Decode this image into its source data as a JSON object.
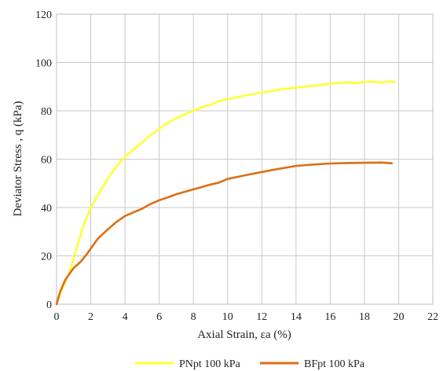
{
  "chart_data": {
    "type": "line",
    "xlabel": "Axial Strain, εa (%)",
    "ylabel": "Deviator Stress , q (kPa)",
    "xlim": [
      0,
      22
    ],
    "ylim": [
      0,
      120
    ],
    "xticks": [
      0,
      2,
      4,
      6,
      8,
      10,
      12,
      14,
      16,
      18,
      20,
      22
    ],
    "yticks": [
      0,
      20,
      40,
      60,
      80,
      100,
      120
    ],
    "grid": true,
    "legend_position": "bottom-center",
    "series": [
      {
        "name": "PNpt 100 kPa",
        "color": "#ffff33",
        "points": [
          [
            0,
            0
          ],
          [
            0.2,
            4
          ],
          [
            0.5,
            9
          ],
          [
            0.8,
            14
          ],
          [
            1.0,
            19
          ],
          [
            1.3,
            26
          ],
          [
            1.6,
            33
          ],
          [
            2.0,
            40
          ],
          [
            2.5,
            46
          ],
          [
            3.0,
            52
          ],
          [
            3.5,
            57
          ],
          [
            4.0,
            61
          ],
          [
            4.5,
            64
          ],
          [
            5.0,
            67
          ],
          [
            5.5,
            70
          ],
          [
            6.0,
            72.5
          ],
          [
            6.5,
            75
          ],
          [
            7.0,
            77
          ],
          [
            7.5,
            78.5
          ],
          [
            8.0,
            80
          ],
          [
            8.5,
            81.5
          ],
          [
            9.0,
            82.5
          ],
          [
            9.5,
            84
          ],
          [
            10.0,
            84.8
          ],
          [
            11.0,
            86.3
          ],
          [
            12.0,
            87.5
          ],
          [
            13.0,
            88.7
          ],
          [
            14.0,
            89.6
          ],
          [
            15.0,
            90.4
          ],
          [
            16.0,
            91.2
          ],
          [
            17.0,
            91.8
          ],
          [
            17.5,
            91.5
          ],
          [
            18.0,
            91.9
          ],
          [
            18.5,
            92.1
          ],
          [
            19.0,
            91.7
          ],
          [
            19.5,
            92.2
          ],
          [
            19.8,
            92.0
          ]
        ]
      },
      {
        "name": "BFpt 100 kPa",
        "color": "#dd6f15",
        "points": [
          [
            0,
            0
          ],
          [
            0.2,
            5
          ],
          [
            0.5,
            10
          ],
          [
            0.8,
            13
          ],
          [
            1.0,
            15
          ],
          [
            1.4,
            17.5
          ],
          [
            1.8,
            21
          ],
          [
            2.0,
            23
          ],
          [
            2.4,
            27
          ],
          [
            3.0,
            31
          ],
          [
            3.5,
            34
          ],
          [
            4.0,
            36.5
          ],
          [
            4.5,
            38
          ],
          [
            5.0,
            39.5
          ],
          [
            5.5,
            41.5
          ],
          [
            6.0,
            43
          ],
          [
            6.5,
            44.2
          ],
          [
            7.0,
            45.5
          ],
          [
            7.5,
            46.5
          ],
          [
            8.0,
            47.5
          ],
          [
            8.5,
            48.5
          ],
          [
            9.0,
            49.5
          ],
          [
            9.5,
            50.3
          ],
          [
            10.0,
            51.8
          ],
          [
            11.0,
            53.3
          ],
          [
            12.0,
            54.7
          ],
          [
            13.0,
            56
          ],
          [
            14.0,
            57.2
          ],
          [
            15.0,
            57.8
          ],
          [
            16.0,
            58.2
          ],
          [
            17.0,
            58.4
          ],
          [
            18.0,
            58.5
          ],
          [
            19.0,
            58.6
          ],
          [
            19.6,
            58.3
          ]
        ]
      }
    ]
  }
}
